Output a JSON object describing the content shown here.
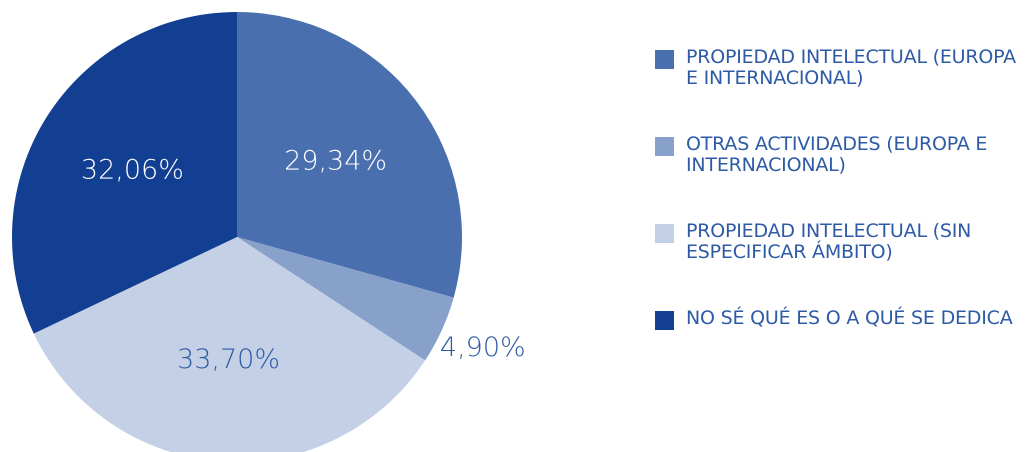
{
  "chart_data": {
    "type": "pie",
    "categories": [
      "PROPIEDAD INTELECTUAL (EUROPA E INTERNACIONAL)",
      "OTRAS ACTIVIDADES (EUROPA E INTERNACIONAL)",
      "PROPIEDAD INTELECTUAL (SIN ESPECIFICAR ÁMBITO)",
      "NO SÉ QUÉ ES O A QUÉ SE DEDICA"
    ],
    "values": [
      29.34,
      4.9,
      33.7,
      32.06
    ],
    "value_labels": [
      "29,34%",
      "4,90%",
      "33,70%",
      "32,06%"
    ],
    "colors": [
      "#4a6fae",
      "#87a1cb",
      "#c3d0e5",
      "#123f92"
    ],
    "legend": "right"
  }
}
